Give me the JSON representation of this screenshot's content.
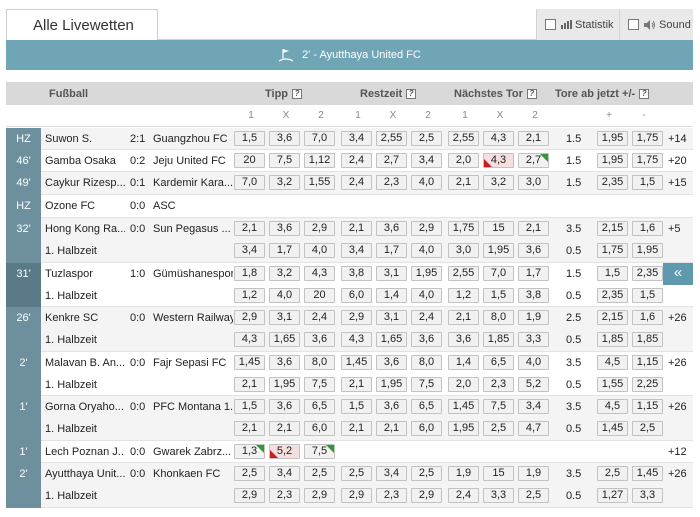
{
  "tab": {
    "title": "Alle Livewetten"
  },
  "options": {
    "statistik": "Statistik",
    "sound": "Sound"
  },
  "banner": {
    "text": "2' - Ayutthaya United FC"
  },
  "header": {
    "sport": "Fußball",
    "tipp": "Tipp",
    "restzeit": "Restzeit",
    "naechstes_tor": "Nächstes Tor",
    "tore_ab_jetzt": "Tore ab jetzt +/-",
    "help": "?"
  },
  "subheader": {
    "tipp": [
      "1",
      "X",
      "2"
    ],
    "restzeit": [
      "1",
      "X",
      "2"
    ],
    "naechstes_tor": [
      "1",
      "X",
      "2"
    ],
    "tore": [
      "+",
      "-"
    ]
  },
  "matches": [
    {
      "time": "HZ",
      "home": "Suwon S.",
      "score": "2:1",
      "away": "Guangzhou FC",
      "tipp": [
        "1,5",
        "3,6",
        "7,0"
      ],
      "restzeit": [
        "3,4",
        "2,55",
        "2,5"
      ],
      "tor": [
        "2,55",
        "4,3",
        "2,1"
      ],
      "line": "1.5",
      "tore": [
        "1,95",
        "1,75"
      ],
      "more": "+14"
    },
    {
      "time": "46'",
      "home": "Gamba Osaka",
      "score": "0:2",
      "away": "Jeju United FC",
      "tipp": [
        "20",
        "7,5",
        "1,12"
      ],
      "restzeit": [
        "2,4",
        "2,7",
        "3,4"
      ],
      "tor": [
        "2,0",
        "4,3",
        "2,7"
      ],
      "line": "1.5",
      "tore": [
        "1,95",
        "1,75"
      ],
      "more": "+20"
    },
    {
      "time": "49'",
      "home": "Caykur Rizesp...",
      "score": "0:1",
      "away": "Kardemir Kara...",
      "tipp": [
        "7,0",
        "3,2",
        "1,55"
      ],
      "restzeit": [
        "2,4",
        "2,3",
        "4,0"
      ],
      "tor": [
        "2,1",
        "3,2",
        "3,0"
      ],
      "line": "1.5",
      "tore": [
        "2,35",
        "1,5"
      ],
      "more": "+15"
    },
    {
      "time": "HZ",
      "home": "Ozone FC",
      "score": "0:0",
      "away": "ASC"
    },
    {
      "time": "32'",
      "home": "Hong Kong Ra...",
      "score": "0:0",
      "away": "Sun Pegasus ...",
      "tipp": [
        "2,1",
        "3,6",
        "2,9"
      ],
      "restzeit": [
        "2,1",
        "3,6",
        "2,9"
      ],
      "tor": [
        "1,75",
        "15",
        "2,1"
      ],
      "line": "3.5",
      "tore": [
        "2,15",
        "1,6"
      ],
      "more": "+5",
      "sub": {
        "label": "1. Halbzeit",
        "tipp": [
          "3,4",
          "1,7",
          "4,0"
        ],
        "restzeit": [
          "3,4",
          "1,7",
          "4,0"
        ],
        "tor": [
          "3,0",
          "1,95",
          "3,6"
        ],
        "line": "0.5",
        "tore": [
          "1,75",
          "1,95"
        ]
      }
    },
    {
      "time": "31'",
      "home": "Tuzlaspor",
      "score": "1:0",
      "away": "Gümüshanespor",
      "tipp": [
        "1,8",
        "3,2",
        "4,3"
      ],
      "restzeit": [
        "3,8",
        "3,1",
        "1,95"
      ],
      "tor": [
        "2,55",
        "7,0",
        "1,7"
      ],
      "line": "1.5",
      "tore": [
        "1,5",
        "2,35"
      ],
      "more": "«",
      "sub": {
        "label": "1. Halbzeit",
        "tipp": [
          "1,2",
          "4,0",
          "20"
        ],
        "restzeit": [
          "6,0",
          "1,4",
          "4,0"
        ],
        "tor": [
          "1,2",
          "1,5",
          "3,8"
        ],
        "line": "0.5",
        "tore": [
          "2,35",
          "1,5"
        ]
      }
    },
    {
      "time": "26'",
      "home": "Kenkre SC",
      "score": "0:0",
      "away": "Western Railway",
      "tipp": [
        "2,9",
        "3,1",
        "2,4"
      ],
      "restzeit": [
        "2,9",
        "3,1",
        "2,4"
      ],
      "tor": [
        "2,1",
        "8,0",
        "1,9"
      ],
      "line": "2.5",
      "tore": [
        "2,15",
        "1,6"
      ],
      "more": "+26",
      "sub": {
        "label": "1. Halbzeit",
        "tipp": [
          "4,3",
          "1,65",
          "3,6"
        ],
        "restzeit": [
          "4,3",
          "1,65",
          "3,6"
        ],
        "tor": [
          "3,6",
          "1,85",
          "3,3"
        ],
        "line": "0.5",
        "tore": [
          "1,85",
          "1,85"
        ]
      }
    },
    {
      "time": "2'",
      "home": "Malavan B. An...",
      "score": "0:0",
      "away": "Fajr Sepasi FC",
      "tipp": [
        "1,45",
        "3,6",
        "8,0"
      ],
      "restzeit": [
        "1,45",
        "3,6",
        "8,0"
      ],
      "tor": [
        "1,4",
        "6,5",
        "4,0"
      ],
      "line": "3.5",
      "tore": [
        "4,5",
        "1,15"
      ],
      "more": "+26",
      "sub": {
        "label": "1. Halbzeit",
        "tipp": [
          "2,1",
          "1,95",
          "7,5"
        ],
        "restzeit": [
          "2,1",
          "1,95",
          "7,5"
        ],
        "tor": [
          "2,0",
          "2,3",
          "5,2"
        ],
        "line": "0.5",
        "tore": [
          "1,55",
          "2,25"
        ]
      }
    },
    {
      "time": "1'",
      "home": "Gorna Oryaho...",
      "score": "0:0",
      "away": "PFC Montana 1...",
      "tipp": [
        "1,5",
        "3,6",
        "6,5"
      ],
      "restzeit": [
        "1,5",
        "3,6",
        "6,5"
      ],
      "tor": [
        "1,45",
        "7,5",
        "3,4"
      ],
      "line": "3.5",
      "tore": [
        "4,5",
        "1,15"
      ],
      "more": "+26",
      "sub": {
        "label": "1. Halbzeit",
        "tipp": [
          "2,1",
          "2,1",
          "6,0"
        ],
        "restzeit": [
          "2,1",
          "2,1",
          "6,0"
        ],
        "tor": [
          "1,95",
          "2,5",
          "4,7"
        ],
        "line": "0.5",
        "tore": [
          "1,45",
          "2,5"
        ]
      }
    },
    {
      "time": "1'",
      "home": "Lech Poznan J...",
      "score": "0:0",
      "away": "Gwarek Zabrz...",
      "tipp": [
        "1,3",
        "5,2",
        "7,5"
      ],
      "more": "+12"
    },
    {
      "time": "2'",
      "home": "Ayutthaya Unit...",
      "score": "0:0",
      "away": "Khonkaen FC",
      "tipp": [
        "2,5",
        "3,4",
        "2,5"
      ],
      "restzeit": [
        "2,5",
        "3,4",
        "2,5"
      ],
      "tor": [
        "1,9",
        "15",
        "1,9"
      ],
      "line": "3.5",
      "tore": [
        "2,5",
        "1,45"
      ],
      "more": "+26",
      "sub": {
        "label": "1. Halbzeit",
        "tipp": [
          "2,9",
          "2,3",
          "2,9"
        ],
        "restzeit": [
          "2,9",
          "2,3",
          "2,9"
        ],
        "tor": [
          "2,4",
          "3,3",
          "2,5"
        ],
        "line": "0.5",
        "tore": [
          "1,27",
          "3,3"
        ]
      }
    }
  ],
  "colors": {
    "banner": "#6fa5b5",
    "time_cell": "#6e8f9d",
    "down": "#c91d1d",
    "up": "#2f9a2f"
  }
}
